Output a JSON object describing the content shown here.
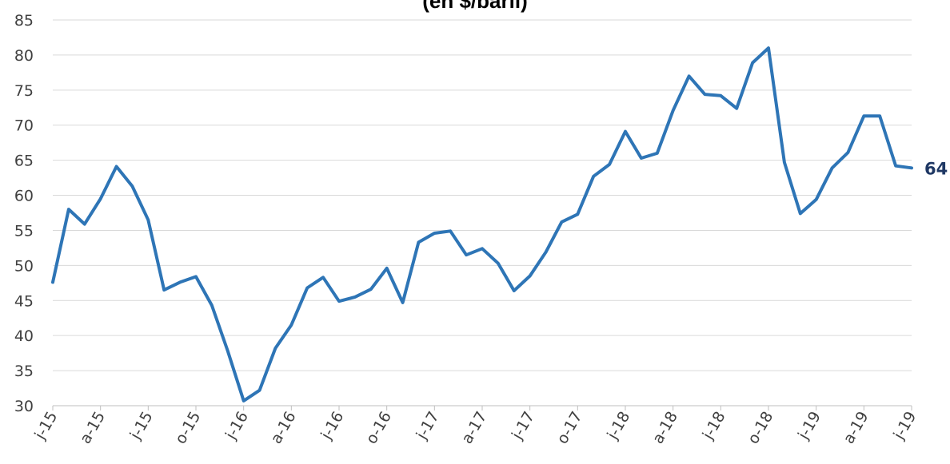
{
  "title": "(en $/baril)",
  "chart_data": {
    "type": "line",
    "title": "(en $/baril)",
    "xlabel": "",
    "ylabel": "",
    "ylim": [
      30,
      85
    ],
    "yticks": [
      30,
      35,
      40,
      45,
      50,
      55,
      60,
      65,
      70,
      75,
      80,
      85
    ],
    "grid": "horizontal",
    "line_color": "#2e75b6",
    "end_label": "64",
    "end_label_color": "#1f3864",
    "x_ticks": [
      {
        "i": 0,
        "label": "j-15"
      },
      {
        "i": 3,
        "label": "a-15"
      },
      {
        "i": 6,
        "label": "j-15"
      },
      {
        "i": 9,
        "label": "o-15"
      },
      {
        "i": 12,
        "label": "j-16"
      },
      {
        "i": 15,
        "label": "a-16"
      },
      {
        "i": 18,
        "label": "j-16"
      },
      {
        "i": 21,
        "label": "o-16"
      },
      {
        "i": 24,
        "label": "j-17"
      },
      {
        "i": 27,
        "label": "a-17"
      },
      {
        "i": 30,
        "label": "j-17"
      },
      {
        "i": 33,
        "label": "o-17"
      },
      {
        "i": 36,
        "label": "j-18"
      },
      {
        "i": 39,
        "label": "a-18"
      },
      {
        "i": 42,
        "label": "j-18"
      },
      {
        "i": 45,
        "label": "o-18"
      },
      {
        "i": 48,
        "label": "j-19"
      },
      {
        "i": 51,
        "label": "a-19"
      },
      {
        "i": 54,
        "label": "j-19"
      }
    ],
    "series": [
      {
        "values": [
          47.6,
          58.0,
          55.9,
          59.5,
          64.1,
          61.3,
          56.5,
          46.5,
          47.6,
          48.4,
          44.3,
          37.8,
          30.7,
          32.2,
          38.2,
          41.5,
          46.8,
          48.3,
          44.9,
          45.5,
          46.6,
          49.6,
          44.7,
          53.3,
          54.6,
          54.9,
          51.5,
          52.4,
          50.3,
          46.4,
          48.5,
          51.9,
          56.2,
          57.3,
          62.7,
          64.4,
          69.1,
          65.3,
          66.0,
          72.1,
          77.0,
          74.4,
          74.2,
          72.4,
          78.9,
          81.0,
          64.7,
          57.4,
          59.4,
          63.9,
          66.1,
          71.3,
          71.3,
          64.2,
          63.9
        ]
      }
    ]
  }
}
